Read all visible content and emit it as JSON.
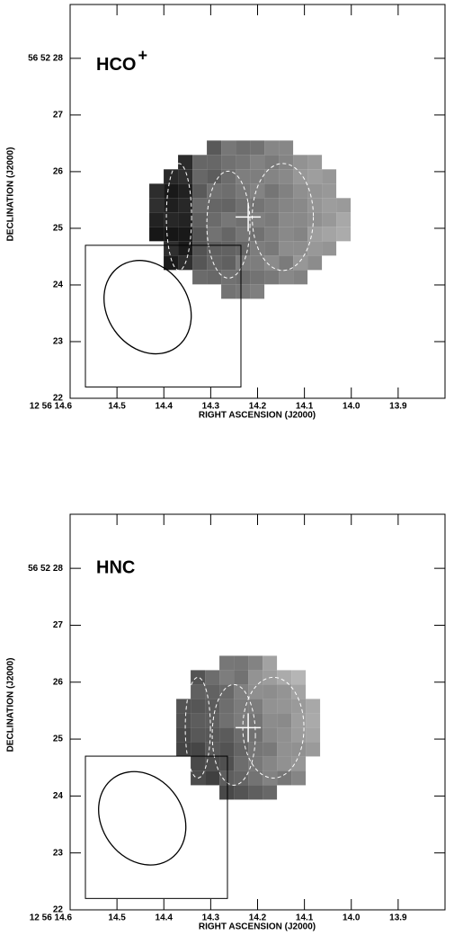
{
  "chart_data": [
    {
      "type": "image",
      "title": "HCO",
      "title_superscript": "+",
      "x_label": "RIGHT ASCENSION (J2000)",
      "y_label": "DECLINATION (J2000)",
      "xlim": [
        14.6,
        13.8
      ],
      "ylim": [
        22,
        28.95
      ],
      "xticks": [
        {
          "value": 14.6,
          "label": "12 56 14.6"
        },
        14.5,
        14.4,
        14.3,
        14.2,
        14.1,
        {
          "value": 14,
          "label": "14.0"
        },
        13.9
      ],
      "yticks": [
        {
          "value": 22,
          "label": "22"
        },
        {
          "value": 23,
          "label": "23"
        },
        {
          "value": 24,
          "label": "24"
        },
        {
          "value": 25,
          "label": "25"
        },
        {
          "value": 26,
          "label": "26"
        },
        {
          "value": 27,
          "label": "27"
        },
        {
          "value": 28,
          "label": "56 52 28"
        }
      ]
    },
    {
      "type": "image",
      "title": "HNC",
      "x_label": "RIGHT ASCENSION (J2000)",
      "y_label": "DECLINATION (J2000)",
      "xlim": [
        14.6,
        13.8
      ],
      "ylim": [
        22,
        28.95
      ],
      "xticks": [
        {
          "value": 14.6,
          "label": "12 56 14.6"
        },
        14.5,
        14.4,
        14.3,
        14.2,
        14.1,
        {
          "value": 14,
          "label": "14.0"
        },
        13.9
      ],
      "yticks": [
        {
          "value": 22,
          "label": "22"
        },
        {
          "value": 23,
          "label": "23"
        },
        {
          "value": 24,
          "label": "24"
        },
        {
          "value": 25,
          "label": "25"
        },
        {
          "value": 26,
          "label": "26"
        },
        {
          "value": 27,
          "label": "27"
        },
        {
          "value": 28,
          "label": "56 52 28"
        }
      ]
    }
  ]
}
